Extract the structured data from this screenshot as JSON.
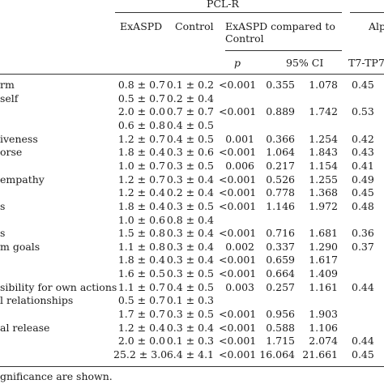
{
  "header": {
    "group_title": "PCL-R",
    "col_exaspd": "ExASPD",
    "col_control": "Control",
    "col_compared_line1": "ExASPD compared to",
    "col_compared_line2": "Control",
    "col_alpha": "Alp",
    "sub_p": "p",
    "sub_ci": "95% CI",
    "sub_alpha": "T7-TP7"
  },
  "rows": [
    {
      "label": "rm",
      "exaspd": "0.8 ± 0.7",
      "control": "0.1 ± 0.2",
      "p": "<0.001",
      "ci_low": "0.355",
      "ci_high": "1.078",
      "alpha": "0.45"
    },
    {
      "label": "self",
      "exaspd": "0.5 ± 0.7",
      "control": "0.2 ± 0.4",
      "p": "",
      "ci_low": "",
      "ci_high": "",
      "alpha": ""
    },
    {
      "label": "",
      "exaspd": "2.0 ± 0.0",
      "control": "0.7 ± 0.7",
      "p": "<0.001",
      "ci_low": "0.889",
      "ci_high": "1.742",
      "alpha": "0.53"
    },
    {
      "label": "",
      "exaspd": "0.6 ± 0.8",
      "control": "0.4 ± 0.5",
      "p": "",
      "ci_low": "",
      "ci_high": "",
      "alpha": ""
    },
    {
      "label": "iveness",
      "exaspd": "1.2 ± 0.7",
      "control": "0.4 ± 0.5",
      "p": "0.001",
      "ci_low": "0.366",
      "ci_high": "1.254",
      "alpha": "0.42"
    },
    {
      "label": "orse",
      "exaspd": "1.8 ± 0.4",
      "control": "0.3 ± 0.6",
      "p": "<0.001",
      "ci_low": "1.064",
      "ci_high": "1.843",
      "alpha": "0.43"
    },
    {
      "label": "",
      "exaspd": "1.0 ± 0.7",
      "control": "0.3 ± 0.5",
      "p": "0.006",
      "ci_low": "0.217",
      "ci_high": "1.154",
      "alpha": "0.41"
    },
    {
      "label": "empathy",
      "exaspd": "1.2 ± 0.7",
      "control": "0.3 ± 0.4",
      "p": "<0.001",
      "ci_low": "0.526",
      "ci_high": "1.255",
      "alpha": "0.49"
    },
    {
      "label": "",
      "exaspd": "1.2 ± 0.4",
      "control": "0.2 ± 0.4",
      "p": "<0.001",
      "ci_low": "0.778",
      "ci_high": "1.368",
      "alpha": "0.45"
    },
    {
      "label": "s",
      "exaspd": "1.8 ± 0.4",
      "control": "0.3 ± 0.5",
      "p": "<0.001",
      "ci_low": "1.146",
      "ci_high": "1.972",
      "alpha": "0.48"
    },
    {
      "label": "",
      "exaspd": "1.0 ± 0.6",
      "control": "0.8 ± 0.4",
      "p": "",
      "ci_low": "",
      "ci_high": "",
      "alpha": ""
    },
    {
      "label": "s",
      "exaspd": "1.5 ± 0.8",
      "control": "0.3 ± 0.4",
      "p": "<0.001",
      "ci_low": "0.716",
      "ci_high": "1.681",
      "alpha": "0.36"
    },
    {
      "label": "m goals",
      "exaspd": "1.1 ± 0.8",
      "control": "0.3 ± 0.4",
      "p": "0.002",
      "ci_low": "0.337",
      "ci_high": "1.290",
      "alpha": "0.37"
    },
    {
      "label": "",
      "exaspd": "1.8 ± 0.4",
      "control": "0.3 ± 0.4",
      "p": "<0.001",
      "ci_low": "0.659",
      "ci_high": "1.617",
      "alpha": ""
    },
    {
      "label": "",
      "exaspd": "1.6 ± 0.5",
      "control": "0.3 ± 0.5",
      "p": "<0.001",
      "ci_low": "0.664",
      "ci_high": "1.409",
      "alpha": ""
    },
    {
      "label": "sibility for own actions",
      "exaspd": "1.1 ± 0.7",
      "control": "0.4 ± 0.5",
      "p": "0.003",
      "ci_low": "0.257",
      "ci_high": "1.161",
      "alpha": "0.44"
    },
    {
      "label": "l relationships",
      "exaspd": "0.5 ± 0.7",
      "control": "0.1 ± 0.3",
      "p": "",
      "ci_low": "",
      "ci_high": "",
      "alpha": ""
    },
    {
      "label": "",
      "exaspd": "1.7 ± 0.7",
      "control": "0.3 ± 0.5",
      "p": "<0.001",
      "ci_low": "0.956",
      "ci_high": "1.903",
      "alpha": ""
    },
    {
      "label": "al release",
      "exaspd": "1.2 ± 0.4",
      "control": "0.3 ± 0.4",
      "p": "<0.001",
      "ci_low": "0.588",
      "ci_high": "1.106",
      "alpha": ""
    },
    {
      "label": "",
      "exaspd": "2.0 ± 0.0",
      "control": "0.1 ± 0.3",
      "p": "<0.001",
      "ci_low": "1.715",
      "ci_high": "2.074",
      "alpha": "0.44"
    },
    {
      "label": "",
      "exaspd": "25.2 ± 3.0",
      "control": "6.4 ± 4.1",
      "p": "<0.001",
      "ci_low": "16.064",
      "ci_high": "21.661",
      "alpha": "0.45"
    }
  ],
  "footnote": "gnificance are shown."
}
